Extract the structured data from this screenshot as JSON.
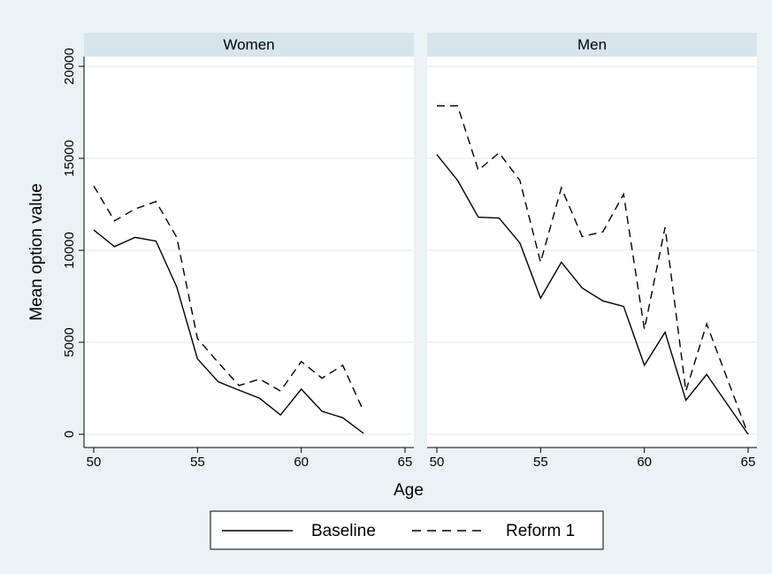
{
  "chart_data": {
    "type": "line",
    "xlabel": "Age",
    "ylabel": "Mean option value",
    "xlim": [
      50,
      65
    ],
    "ylim": [
      0,
      20000
    ],
    "xticks": [
      50,
      55,
      60,
      65
    ],
    "yticks": [
      0,
      5000,
      10000,
      15000,
      20000
    ],
    "grid": true,
    "legend_position": "bottom",
    "panels": [
      {
        "title": "Women",
        "series": [
          {
            "name": "Baseline",
            "style": "solid",
            "x": [
              50,
              51,
              52,
              53,
              54,
              55,
              56,
              57,
              58,
              59,
              60,
              61,
              62,
              63
            ],
            "y": [
              11100,
              10200,
              10700,
              10500,
              8000,
              4100,
              2850,
              2400,
              1950,
              1050,
              2450,
              1250,
              900,
              50
            ]
          },
          {
            "name": "Reform 1",
            "style": "dashed",
            "x": [
              50,
              51,
              52,
              53,
              54,
              55,
              56,
              57,
              58,
              59,
              60,
              61,
              62,
              63
            ],
            "y": [
              13500,
              11600,
              12250,
              12650,
              10700,
              5200,
              3900,
              2650,
              3000,
              2350,
              3950,
              3050,
              3750,
              1250
            ]
          }
        ]
      },
      {
        "title": "Men",
        "series": [
          {
            "name": "Baseline",
            "style": "solid",
            "x": [
              50,
              51,
              52,
              53,
              54,
              55,
              56,
              57,
              58,
              59,
              60,
              61,
              62,
              63,
              65
            ],
            "y": [
              15200,
              13800,
              11800,
              11750,
              10400,
              7400,
              9350,
              7950,
              7250,
              6950,
              3750,
              5550,
              1850,
              3250,
              0
            ]
          },
          {
            "name": "Reform 1",
            "style": "dashed",
            "x": [
              50,
              51,
              52,
              53,
              54,
              55,
              56,
              57,
              58,
              59,
              60,
              61,
              62,
              63,
              65
            ],
            "y": [
              17850,
              17850,
              14350,
              15300,
              13800,
              9350,
              13400,
              10750,
              11000,
              13050,
              5700,
              11250,
              2350,
              6000,
              0
            ]
          }
        ]
      }
    ],
    "legend": [
      {
        "label": "Baseline",
        "style": "solid"
      },
      {
        "label": "Reform 1",
        "style": "dashed"
      }
    ]
  }
}
